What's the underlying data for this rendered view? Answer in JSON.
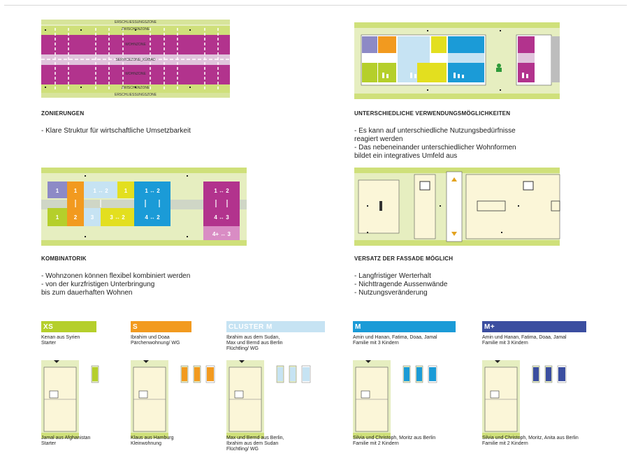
{
  "zones": {
    "labels": [
      "ERSCHLIESSUNGSZONE",
      "ZWISCHENZONE",
      "WOHNZONE",
      "SERVICEZONE_KÜ/BAD",
      "WOHNZONE",
      "ZWISCHENZONE",
      "ERSCHLIESSUNGSZONE"
    ]
  },
  "sections": {
    "zonierungen": {
      "title": "ZONIERUNGEN",
      "points": [
        "- Klare Struktur für wirtschaftliche Umsetzbarkeit"
      ]
    },
    "verwendung": {
      "title": "UNTERSCHIEDLICHE VERWENDUNGSMÖGLICHKEITEN",
      "points": [
        "- Es kann auf unterschiedliche Nutzungsbedürfnisse",
        "  reagiert werden",
        "- Das nebeneinander unterschiedlicher Wohnformen",
        "  bildet ein integratives Umfeld aus"
      ]
    },
    "kombinatorik": {
      "title": "KOMBINATORIK",
      "points": [
        "- Wohnzonen können flexibel kombiniert werden",
        "- von der kurzfristigen Unterbringung",
        "  bis zum dauerhaften Wohnen"
      ]
    },
    "versatz": {
      "title": "VERSATZ DER FASSADE MÖGLICH",
      "points": [
        "- Langfristiger Werterhalt",
        "- Nichttragende Aussenwände",
        "- Nutzungsveränderung"
      ]
    }
  },
  "combinations": {
    "top_left": [
      "1",
      "1",
      "1 ↔ 2",
      "1",
      "1 ↔ 2",
      "1 ↔ 2"
    ],
    "bottom_left": [
      "1",
      "2",
      "3",
      "3 ↔ 2",
      "4 ↔ 2",
      "4 ↔ 3"
    ],
    "bottom_extra": [
      "4+ ↔ 3"
    ]
  },
  "colors": {
    "lime": "#b5cf2b",
    "pale_green": "#e6eec0",
    "magenta": "#b2338d",
    "orange": "#f29a1f",
    "light_blue": "#c6e3f3",
    "blue": "#1b9bd7",
    "navy": "#3b4ea0",
    "lavender": "#8d8ac6",
    "yellow": "#e3df1f",
    "cream": "#fbf6d8"
  },
  "units": [
    {
      "label": "XS",
      "color": "#b5cf2b",
      "top_text": "Kenan aus Syrien\nStarter",
      "bottom_text": "Jamal aus Afghanistan\nStarter"
    },
    {
      "label": "S",
      "color": "#f29a1f",
      "top_text": "Ibrahim und Doaa\nPärchenwohnung/ WG",
      "bottom_text": "Klaus aus Hamburg\nKleinwohnung"
    },
    {
      "label": "CLUSTER M",
      "color": "#c6e3f3",
      "top_text": "Ibrahim aus dem Sudan,\nMax und Bernd aus Berlin\nFlüchtling/ WG",
      "bottom_text": "Max und Bernd aus Berlin,\nIbrahim aus dem Sudan\nFlüchtling/ WG"
    },
    {
      "label": "M",
      "color": "#1b9bd7",
      "top_text": "Amin und Hanan, Fatima, Doaa, Jamal\nFamilie mit 3 Kindern",
      "bottom_text": "Silvia und Christoph, Moritz aus Berlin\nFamilie mit 2 Kindern"
    },
    {
      "label": "M+",
      "color": "#3b4ea0",
      "top_text": "Amin und Hanan, Fatima, Doaa, Jamal\nFamilie mit 3 Kindern",
      "bottom_text": "Silvia und Christoph, Moritz, Anita aus Berlin\nFamilie mit 2 Kindern"
    }
  ]
}
